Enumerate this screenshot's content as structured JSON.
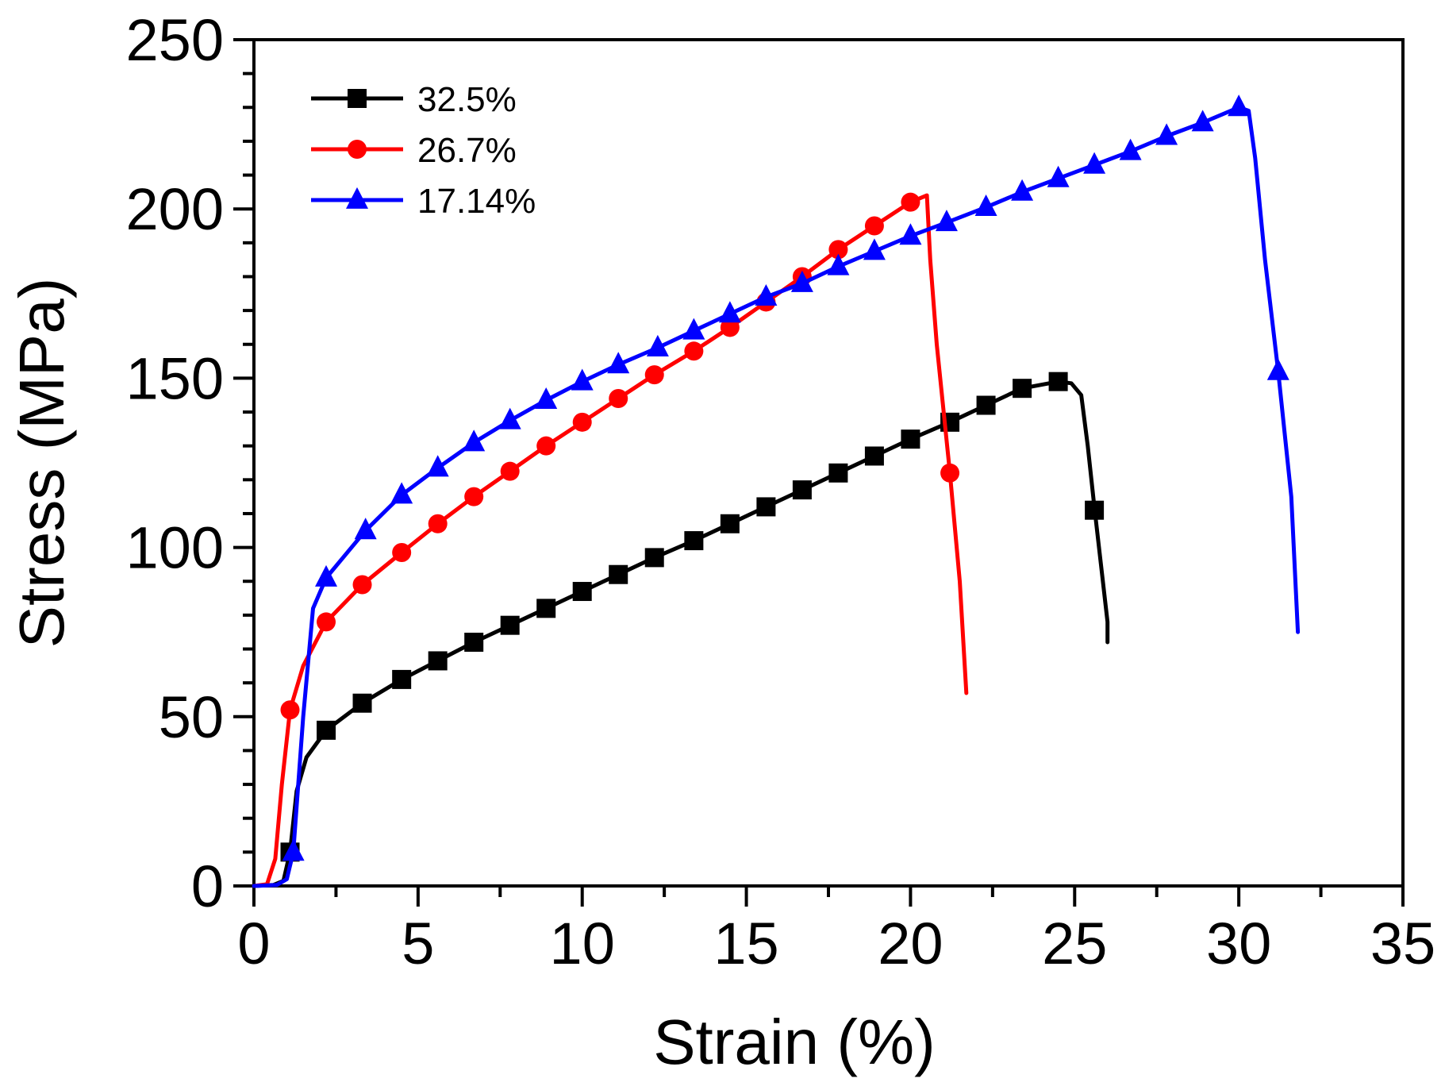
{
  "chart_data": {
    "type": "line",
    "title": "",
    "xlabel": "Strain (%)",
    "ylabel": "Stress (MPa)",
    "xlim": [
      0,
      35
    ],
    "ylim": [
      0,
      250
    ],
    "xticks": [
      0,
      5,
      10,
      15,
      20,
      25,
      30,
      35
    ],
    "xtick_labels": [
      "0",
      "5",
      "10",
      "15",
      "20",
      "25",
      "30",
      "35"
    ],
    "yticks": [
      0,
      50,
      100,
      150,
      200,
      250
    ],
    "ytick_labels": [
      "0",
      "50",
      "100",
      "150",
      "200",
      "250"
    ],
    "grid": false,
    "legend_position": "top-left",
    "series": [
      {
        "name": "32.5%",
        "color": "#000000",
        "marker": "square",
        "curve": [
          [
            0,
            0
          ],
          [
            0.6,
            0.3
          ],
          [
            0.9,
            1.5
          ],
          [
            1.1,
            10
          ],
          [
            1.3,
            28
          ],
          [
            1.6,
            38
          ],
          [
            2.2,
            46
          ],
          [
            3.3,
            54
          ],
          [
            4.5,
            61
          ],
          [
            5.6,
            66.5
          ],
          [
            6.7,
            72
          ],
          [
            7.8,
            77
          ],
          [
            8.9,
            82
          ],
          [
            10,
            87
          ],
          [
            11.1,
            92
          ],
          [
            12.2,
            97
          ],
          [
            13.4,
            102
          ],
          [
            14.5,
            107
          ],
          [
            15.6,
            112
          ],
          [
            16.7,
            117
          ],
          [
            17.8,
            122
          ],
          [
            18.9,
            127
          ],
          [
            20,
            132
          ],
          [
            21.2,
            137
          ],
          [
            22.3,
            142
          ],
          [
            23.4,
            147
          ],
          [
            24.5,
            149
          ],
          [
            24.9,
            148.5
          ],
          [
            25.2,
            145
          ],
          [
            25.4,
            130
          ],
          [
            25.6,
            112
          ],
          [
            25.8,
            95
          ],
          [
            26,
            78
          ],
          [
            26,
            72
          ]
        ],
        "markers": [
          [
            1.1,
            10
          ],
          [
            2.2,
            46
          ],
          [
            3.3,
            54
          ],
          [
            4.5,
            61
          ],
          [
            5.6,
            66.5
          ],
          [
            6.7,
            72
          ],
          [
            7.8,
            77
          ],
          [
            8.9,
            82
          ],
          [
            10,
            87
          ],
          [
            11.1,
            92
          ],
          [
            12.2,
            97
          ],
          [
            13.4,
            102
          ],
          [
            14.5,
            107
          ],
          [
            15.6,
            112
          ],
          [
            16.7,
            117
          ],
          [
            17.8,
            122
          ],
          [
            18.9,
            127
          ],
          [
            20,
            132
          ],
          [
            21.2,
            137
          ],
          [
            22.3,
            142
          ],
          [
            23.4,
            147
          ],
          [
            24.5,
            149
          ],
          [
            25.6,
            111
          ]
        ]
      },
      {
        "name": "26.7%",
        "color": "#ff0000",
        "marker": "circle",
        "curve": [
          [
            0,
            0
          ],
          [
            0.4,
            0.5
          ],
          [
            0.65,
            8
          ],
          [
            0.85,
            30
          ],
          [
            1.1,
            52
          ],
          [
            1.5,
            65
          ],
          [
            2.2,
            78
          ],
          [
            3.3,
            89
          ],
          [
            4.5,
            98.5
          ],
          [
            5.6,
            107
          ],
          [
            6.7,
            115
          ],
          [
            7.8,
            122.5
          ],
          [
            8.9,
            130
          ],
          [
            10,
            137
          ],
          [
            11.1,
            144
          ],
          [
            12.2,
            151
          ],
          [
            13.4,
            158
          ],
          [
            14.5,
            165
          ],
          [
            15.6,
            172.5
          ],
          [
            16.7,
            180
          ],
          [
            17.8,
            188
          ],
          [
            18.9,
            195
          ],
          [
            20,
            202
          ],
          [
            20.5,
            204
          ],
          [
            20.6,
            185
          ],
          [
            20.8,
            160
          ],
          [
            21.2,
            122
          ],
          [
            21.5,
            90
          ],
          [
            21.7,
            57
          ]
        ],
        "markers": [
          [
            1.1,
            52
          ],
          [
            2.2,
            78
          ],
          [
            3.3,
            89
          ],
          [
            4.5,
            98.5
          ],
          [
            5.6,
            107
          ],
          [
            6.7,
            115
          ],
          [
            7.8,
            122.5
          ],
          [
            8.9,
            130
          ],
          [
            10,
            137
          ],
          [
            11.1,
            144
          ],
          [
            12.2,
            151
          ],
          [
            13.4,
            158
          ],
          [
            14.5,
            165
          ],
          [
            15.6,
            172.5
          ],
          [
            16.7,
            180
          ],
          [
            17.8,
            188
          ],
          [
            18.9,
            195
          ],
          [
            20,
            202
          ],
          [
            21.2,
            122
          ]
        ]
      },
      {
        "name": "17.14%",
        "color": "#0000ff",
        "marker": "triangle",
        "curve": [
          [
            0,
            0
          ],
          [
            0.7,
            0.3
          ],
          [
            1.0,
            2
          ],
          [
            1.2,
            10
          ],
          [
            1.5,
            50
          ],
          [
            1.8,
            82
          ],
          [
            2.2,
            91
          ],
          [
            3.4,
            105
          ],
          [
            4.5,
            115.5
          ],
          [
            5.6,
            123.5
          ],
          [
            6.7,
            131
          ],
          [
            7.8,
            137.5
          ],
          [
            8.9,
            143.5
          ],
          [
            10,
            149
          ],
          [
            11.1,
            154
          ],
          [
            12.3,
            159
          ],
          [
            13.4,
            164
          ],
          [
            14.5,
            169
          ],
          [
            15.6,
            174
          ],
          [
            16.7,
            178
          ],
          [
            17.8,
            183
          ],
          [
            18.9,
            187.5
          ],
          [
            20,
            192
          ],
          [
            21.1,
            196
          ],
          [
            22.3,
            200.5
          ],
          [
            23.4,
            205
          ],
          [
            24.5,
            209
          ],
          [
            25.6,
            213
          ],
          [
            26.7,
            217
          ],
          [
            27.8,
            221.5
          ],
          [
            28.9,
            225.5
          ],
          [
            30,
            230
          ],
          [
            30.3,
            229
          ],
          [
            30.5,
            215
          ],
          [
            30.8,
            185
          ],
          [
            31.2,
            152
          ],
          [
            31.6,
            115
          ],
          [
            31.8,
            75
          ]
        ],
        "markers": [
          [
            1.2,
            10
          ],
          [
            2.2,
            91
          ],
          [
            3.4,
            105
          ],
          [
            4.5,
            115.5
          ],
          [
            5.6,
            123.5
          ],
          [
            6.7,
            131
          ],
          [
            7.8,
            137.5
          ],
          [
            8.9,
            143.5
          ],
          [
            10,
            149
          ],
          [
            11.1,
            154
          ],
          [
            12.3,
            159
          ],
          [
            13.4,
            164
          ],
          [
            14.5,
            169
          ],
          [
            15.6,
            174
          ],
          [
            16.7,
            178
          ],
          [
            17.8,
            183
          ],
          [
            18.9,
            187.5
          ],
          [
            20,
            192
          ],
          [
            21.1,
            196
          ],
          [
            22.3,
            200.5
          ],
          [
            23.4,
            205
          ],
          [
            24.5,
            209
          ],
          [
            25.6,
            213
          ],
          [
            26.7,
            217
          ],
          [
            27.8,
            221.5
          ],
          [
            28.9,
            225.5
          ],
          [
            30,
            230
          ],
          [
            31.2,
            152
          ]
        ]
      }
    ]
  }
}
